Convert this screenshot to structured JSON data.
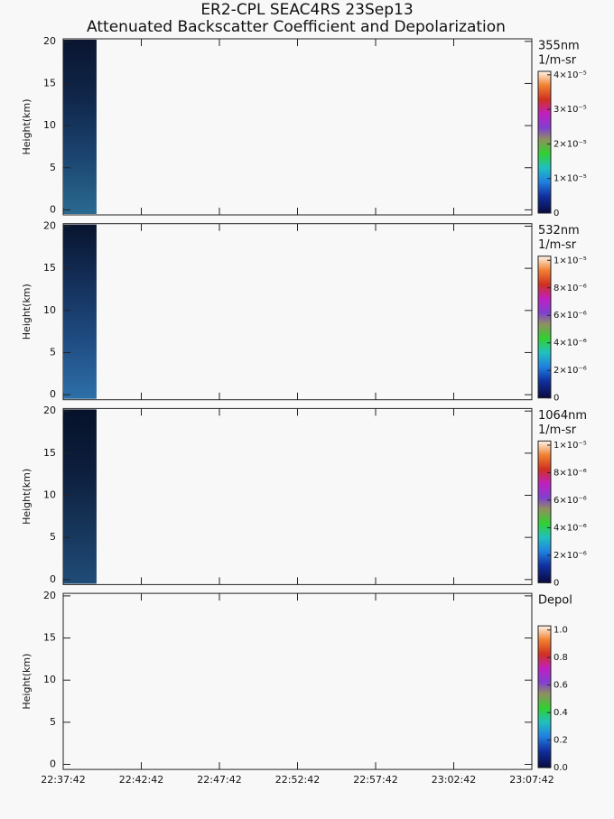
{
  "title": "ER2-CPL SEAC4RS 23Sep13",
  "subtitle": "Attenuated Backscatter Coefficient and Depolarization",
  "chart_data": [
    {
      "type": "heatmap",
      "ylabel": "Height(km)",
      "ylim": [
        -0.6,
        20.3
      ],
      "yticks": [
        0,
        5,
        10,
        15,
        20
      ],
      "x": [
        "22:37:42",
        "22:39:50"
      ],
      "colors": [
        "#0a1530",
        "#10264a",
        "#1b4470",
        "#2a6a90"
      ],
      "colorbar": {
        "label": [
          "355nm",
          "1/m-sr"
        ],
        "lim": [
          0,
          4.1e-05
        ],
        "ticks": [
          {
            "value": 0,
            "label": "0"
          },
          {
            "value": 1e-05,
            "label": "1×10⁻⁵"
          },
          {
            "value": 2e-05,
            "label": "2×10⁻⁵"
          },
          {
            "value": 3e-05,
            "label": "3×10⁻⁵"
          },
          {
            "value": 4e-05,
            "label": "4×10⁻⁵"
          }
        ]
      }
    },
    {
      "type": "heatmap",
      "ylabel": "Height(km)",
      "ylim": [
        -0.6,
        20.3
      ],
      "yticks": [
        0,
        5,
        10,
        15,
        20
      ],
      "x": [
        "22:37:42",
        "22:39:50"
      ],
      "colors": [
        "#08142e",
        "#14305a",
        "#1f4c82",
        "#2d70a8"
      ],
      "colorbar": {
        "label": [
          "532nm",
          "1/m-sr"
        ],
        "lim": [
          0,
          1.03e-05
        ],
        "ticks": [
          {
            "value": 0,
            "label": "0"
          },
          {
            "value": 2e-06,
            "label": "2×10⁻⁶"
          },
          {
            "value": 4e-06,
            "label": "4×10⁻⁶"
          },
          {
            "value": 6e-06,
            "label": "6×10⁻⁶"
          },
          {
            "value": 8e-06,
            "label": "8×10⁻⁶"
          },
          {
            "value": 1e-05,
            "label": "1×10⁻⁵"
          }
        ]
      }
    },
    {
      "type": "heatmap",
      "ylabel": "Height(km)",
      "ylim": [
        -0.6,
        20.3
      ],
      "yticks": [
        0,
        5,
        10,
        15,
        20
      ],
      "x": [
        "22:37:42",
        "22:39:50"
      ],
      "colors": [
        "#06122a",
        "#0c1d3c",
        "#163458",
        "#1f4c78"
      ],
      "colorbar": {
        "label": [
          "1064nm",
          "1/m-sr"
        ],
        "lim": [
          0,
          1.03e-05
        ],
        "ticks": [
          {
            "value": 0,
            "label": "0"
          },
          {
            "value": 2e-06,
            "label": "2×10⁻⁶"
          },
          {
            "value": 4e-06,
            "label": "4×10⁻⁶"
          },
          {
            "value": 6e-06,
            "label": "6×10⁻⁶"
          },
          {
            "value": 8e-06,
            "label": "8×10⁻⁶"
          },
          {
            "value": 1e-05,
            "label": "1×10⁻⁵"
          }
        ]
      }
    },
    {
      "type": "empty",
      "ylabel": "Height(km)",
      "ylim": [
        -0.6,
        20.3
      ],
      "yticks": [
        0,
        5,
        10,
        15,
        20
      ],
      "xlim": [
        "22:37:42",
        "23:07:42"
      ],
      "xticks": [
        "22:37:42",
        "22:42:42",
        "22:47:42",
        "22:52:42",
        "22:57:42",
        "23:02:42",
        "23:07:42"
      ],
      "colorbar": {
        "label": [
          "Depol"
        ],
        "lim": [
          0,
          1.03
        ],
        "ticks": [
          {
            "value": 0,
            "label": "0.0"
          },
          {
            "value": 0.2,
            "label": "0.2"
          },
          {
            "value": 0.4,
            "label": "0.4"
          },
          {
            "value": 0.6,
            "label": "0.6"
          },
          {
            "value": 0.8,
            "label": "0.8"
          },
          {
            "value": 1.0,
            "label": "1.0"
          }
        ]
      }
    }
  ]
}
